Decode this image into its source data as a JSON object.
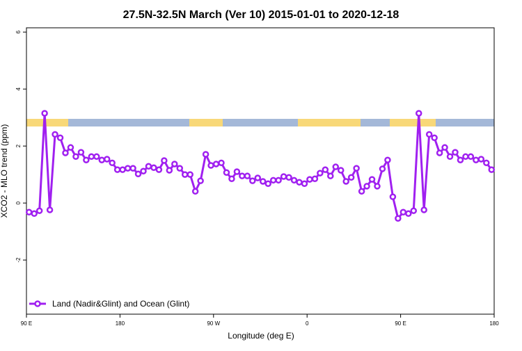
{
  "chart_data": {
    "type": "line",
    "title": "27.5N-32.5N March (Ver 10)   2015-01-01 to 2020-12-18",
    "x_label": "Longitude (deg E)",
    "y_label": "XCO2 - MLO trend (ppm)",
    "x": [
      92.5,
      97.5,
      102.5,
      107.5,
      112.5,
      117.5,
      122.5,
      127.5,
      132.5,
      137.5,
      142.5,
      147.5,
      152.5,
      157.5,
      162.5,
      167.5,
      172.5,
      177.5,
      182.5,
      187.5,
      192.5,
      197.5,
      202.5,
      207.5,
      212.5,
      217.5,
      222.5,
      227.5,
      232.5,
      237.5,
      242.5,
      247.5,
      252.5,
      257.5,
      262.5,
      267.5,
      272.5,
      277.5,
      282.5,
      287.5,
      292.5,
      297.5,
      302.5,
      307.5,
      312.5,
      317.5,
      322.5,
      327.5,
      332.5,
      337.5,
      342.5,
      347.5,
      352.5,
      357.5,
      362.5,
      367.5,
      372.5,
      377.5,
      382.5,
      387.5,
      392.5,
      397.5,
      402.5,
      407.5,
      412.5,
      417.5,
      422.5,
      427.5,
      432.5,
      437.5,
      442.5,
      447.5,
      452.5,
      457.5,
      462.5,
      467.5,
      472.5,
      477.5,
      482.5,
      487.5,
      492.5,
      497.5,
      502.5,
      507.5,
      512.5,
      517.5,
      522.5,
      527.5,
      532.5,
      537.5
    ],
    "series": [
      {
        "name": "Land (Nadir&Glint) and Ocean (Glint)",
        "color": "#a020f0",
        "values": [
          -0.32,
          -0.37,
          -0.27,
          3.15,
          -0.24,
          2.41,
          2.29,
          1.76,
          1.95,
          1.63,
          1.78,
          1.51,
          1.63,
          1.63,
          1.51,
          1.54,
          1.41,
          1.17,
          1.17,
          1.22,
          1.22,
          1.02,
          1.12,
          1.29,
          1.24,
          1.17,
          1.49,
          1.15,
          1.37,
          1.22,
          1.0,
          1.0,
          0.41,
          0.78,
          1.71,
          1.32,
          1.37,
          1.41,
          1.07,
          0.85,
          1.1,
          0.95,
          0.95,
          0.78,
          0.88,
          0.76,
          0.68,
          0.8,
          0.8,
          0.93,
          0.9,
          0.8,
          0.73,
          0.68,
          0.83,
          0.85,
          1.05,
          1.17,
          0.95,
          1.27,
          1.15,
          0.76,
          0.9,
          1.22,
          0.41,
          0.59,
          0.83,
          0.59,
          1.2,
          1.51,
          0.22,
          -0.54,
          -0.32,
          -0.37,
          -0.27,
          3.15,
          -0.24,
          2.41,
          2.29,
          1.76,
          1.95,
          1.63,
          1.78,
          1.51,
          1.63,
          1.63,
          1.51,
          1.54,
          1.41,
          1.17
        ]
      }
    ],
    "xlim": [
      90,
      540
    ],
    "xticks": [
      {
        "value": 90,
        "label": "90 E"
      },
      {
        "value": 180,
        "label": "180"
      },
      {
        "value": 270,
        "label": "90 W"
      },
      {
        "value": 360,
        "label": "0"
      },
      {
        "value": 450,
        "label": "90 E"
      },
      {
        "value": 540,
        "label": "180"
      }
    ],
    "ylim": [
      -3.9,
      6.15
    ],
    "yticks": [
      -2,
      0,
      2,
      4,
      6
    ],
    "legend": "bottom-left"
  }
}
